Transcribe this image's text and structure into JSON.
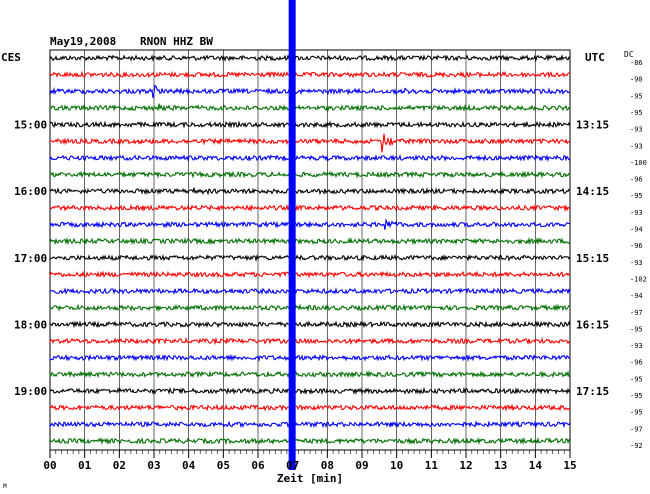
{
  "header": {
    "date": "May19,2008",
    "station": "RNON HHZ BW",
    "left_tz": "CES",
    "right_tz": "UTC",
    "dc_label": "DC"
  },
  "colors": {
    "cycle": [
      "#000000",
      "#ff0000",
      "#0000ff",
      "#007000"
    ],
    "marker": "#0000ff",
    "grid": "#000000"
  },
  "chart_data": {
    "type": "line",
    "title": "May19,2008  RNON HHZ BW",
    "xlabel": "Zeit [min]",
    "x_ticks": [
      "00",
      "01",
      "02",
      "03",
      "04",
      "05",
      "06",
      "07",
      "08",
      "09",
      "10",
      "11",
      "12",
      "13",
      "14",
      "15"
    ],
    "xlim": [
      0,
      15
    ],
    "row_interval_min": 15,
    "left_hour_labels": [
      {
        "row": 4,
        "label": "15:00"
      },
      {
        "row": 8,
        "label": "16:00"
      },
      {
        "row": 12,
        "label": "17:00"
      },
      {
        "row": 16,
        "label": "18:00"
      },
      {
        "row": 20,
        "label": "19:00"
      }
    ],
    "right_hour_labels": [
      {
        "row": 4,
        "label": "13:15"
      },
      {
        "row": 8,
        "label": "14:15"
      },
      {
        "row": 12,
        "label": "15:15"
      },
      {
        "row": 16,
        "label": "16:15"
      },
      {
        "row": 20,
        "label": "17:15"
      }
    ],
    "dc_offsets": [
      "-86",
      "-90",
      "-95",
      "-95",
      "-93",
      "-93",
      "-100",
      "-96",
      "-95",
      "-93",
      "-94",
      "-96",
      "-93",
      "-102",
      "-94",
      "-97",
      "-95",
      "-93",
      "-96",
      "-95",
      "-95",
      "-95",
      "-97",
      "-92"
    ],
    "events": [
      {
        "row": 2,
        "minute": 3.0,
        "amplitude": 1.6
      },
      {
        "row": 3,
        "minute": 3.1,
        "amplitude": 1.4
      },
      {
        "row": 2,
        "minute": 10.1,
        "amplitude": 1.3
      },
      {
        "row": 5,
        "minute": 9.6,
        "amplitude": 3.5
      },
      {
        "row": 8,
        "minute": 4.2,
        "amplitude": 1.2
      },
      {
        "row": 10,
        "minute": 9.7,
        "amplitude": 1.3
      },
      {
        "row": 22,
        "minute": 7.2,
        "amplitude": 1.2
      }
    ],
    "marker_minute": 7.0,
    "row_count": 24
  }
}
